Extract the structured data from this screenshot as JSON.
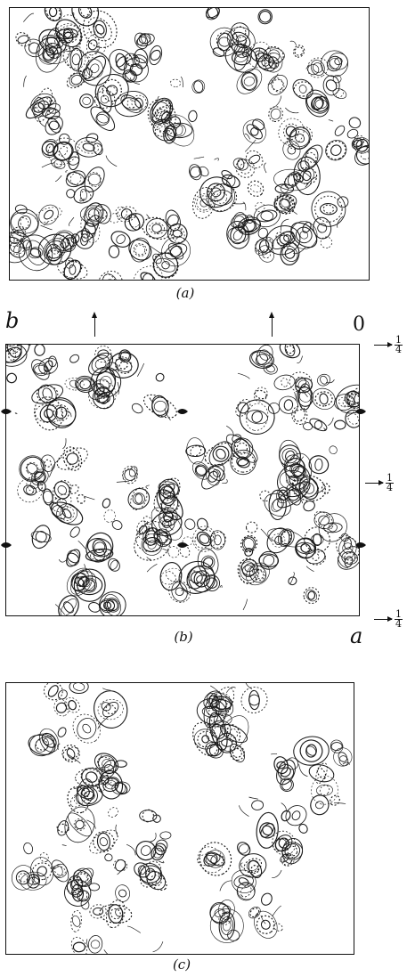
{
  "panels": [
    {
      "id": "a",
      "caption": "(a)"
    },
    {
      "id": "b",
      "caption": "(b)"
    },
    {
      "id": "c",
      "caption": "(c)"
    }
  ],
  "axes": {
    "b_label": "b",
    "a_label": "a",
    "origin_label": "0",
    "tick_fraction_num": "1",
    "tick_fraction_den": "4"
  }
}
